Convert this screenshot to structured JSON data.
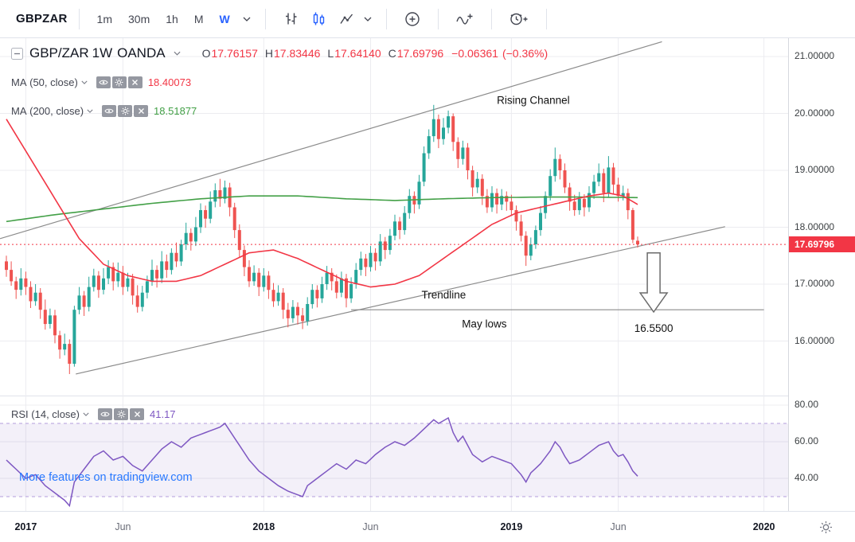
{
  "toolbar": {
    "symbol": "GBPZAR",
    "intervals": [
      "1m",
      "30m",
      "1h",
      "M",
      "W"
    ],
    "active_interval": "W",
    "icons": [
      "bars-chart-style",
      "candles-chart-style",
      "area-chart-style",
      "compare-add-symbol",
      "indicators",
      "alert"
    ]
  },
  "legend": {
    "symbol": "GBP/ZAR",
    "interval": "1W",
    "exchange": "OANDA",
    "ohlc": {
      "o_label": "O",
      "o": "17.76157",
      "h_label": "H",
      "h": "17.83446",
      "l_label": "L",
      "l": "17.64140",
      "c_label": "C",
      "c": "17.69796",
      "change": "−0.06361",
      "change_pct": "(−0.36%)"
    },
    "ma50": {
      "label": "MA",
      "params": "(50, close)",
      "value": "18.40073"
    },
    "ma200": {
      "label": "MA",
      "params": "(200, close)",
      "value": "18.51877"
    }
  },
  "rsi_legend": {
    "label": "RSI",
    "params": "(14, close)",
    "value": "41.17"
  },
  "watermark": "More features on tradingview.com",
  "colors": {
    "accent_blue": "#2962ff",
    "watermark_blue": "#2979ff"
  },
  "price_axis": {
    "ticks": [
      {
        "p": 21,
        "label": "21.00000"
      },
      {
        "p": 20,
        "label": "20.00000"
      },
      {
        "p": 19,
        "label": "19.00000"
      },
      {
        "p": 18,
        "label": "18.00000"
      },
      {
        "p": 17,
        "label": "17.00000"
      },
      {
        "p": 16,
        "label": "16.00000"
      }
    ],
    "last": {
      "price": 17.69796,
      "label": "17.69796",
      "bg": "#f23645"
    }
  },
  "rsi_axis": {
    "ticks": [
      {
        "v": 80,
        "label": "80.00"
      },
      {
        "v": 60,
        "label": "60.00"
      },
      {
        "v": 40,
        "label": "40.00"
      }
    ]
  },
  "time_axis": {
    "ticks": [
      {
        "w": 4,
        "label": "2017",
        "major": true
      },
      {
        "w": 24,
        "label": "Jun",
        "major": false
      },
      {
        "w": 53,
        "label": "2018",
        "major": true
      },
      {
        "w": 75,
        "label": "Jun",
        "major": false
      },
      {
        "w": 104,
        "label": "2019",
        "major": true
      },
      {
        "w": 126,
        "label": "Jun",
        "major": false
      },
      {
        "w": 156,
        "label": "2020",
        "major": true
      }
    ]
  },
  "chart_data": {
    "type": "candlestick",
    "symbol": "GBP/ZAR",
    "interval": "1W",
    "exchange": "OANDA",
    "price_range": [
      15.4,
      21.3
    ],
    "up_color": "#26a69a",
    "down_color": "#ef5350",
    "last_price": 17.69796,
    "candles": [
      [
        17.4,
        17.5,
        17.13,
        17.25
      ],
      [
        17.25,
        17.4,
        16.97,
        17.05
      ],
      [
        17.05,
        17.13,
        16.74,
        16.9
      ],
      [
        16.9,
        17.28,
        16.8,
        17.1
      ],
      [
        17.1,
        17.22,
        16.81,
        16.95
      ],
      [
        16.95,
        17.05,
        16.58,
        16.7
      ],
      [
        16.7,
        17.0,
        16.62,
        16.85
      ],
      [
        16.85,
        16.93,
        16.39,
        16.55
      ],
      [
        16.55,
        16.73,
        16.2,
        16.3
      ],
      [
        16.3,
        16.57,
        16.22,
        16.45
      ],
      [
        16.45,
        16.55,
        15.96,
        16.1
      ],
      [
        16.1,
        16.18,
        15.69,
        15.85
      ],
      [
        15.85,
        16.13,
        15.75,
        15.95
      ],
      [
        15.95,
        16.03,
        15.42,
        15.6
      ],
      [
        15.6,
        16.62,
        15.55,
        16.55
      ],
      [
        16.55,
        16.95,
        16.47,
        16.8
      ],
      [
        16.8,
        16.88,
        16.44,
        16.6
      ],
      [
        16.6,
        17.13,
        16.52,
        16.95
      ],
      [
        16.95,
        17.27,
        16.87,
        17.15
      ],
      [
        17.15,
        17.23,
        16.76,
        16.9
      ],
      [
        16.9,
        17.28,
        16.82,
        17.1
      ],
      [
        17.1,
        17.42,
        17.0,
        17.3
      ],
      [
        17.3,
        17.38,
        16.89,
        17.05
      ],
      [
        17.05,
        17.38,
        16.95,
        17.2
      ],
      [
        17.2,
        17.32,
        16.81,
        16.95
      ],
      [
        16.95,
        17.2,
        16.87,
        17.1
      ],
      [
        17.1,
        17.18,
        16.64,
        16.8
      ],
      [
        16.8,
        16.98,
        16.5,
        16.6
      ],
      [
        16.6,
        16.97,
        16.52,
        16.85
      ],
      [
        16.85,
        17.15,
        16.75,
        17.05
      ],
      [
        17.05,
        17.43,
        16.97,
        17.25
      ],
      [
        17.25,
        17.33,
        16.94,
        17.1
      ],
      [
        17.1,
        17.58,
        17.02,
        17.4
      ],
      [
        17.4,
        17.52,
        17.11,
        17.25
      ],
      [
        17.25,
        17.63,
        17.17,
        17.55
      ],
      [
        17.55,
        17.73,
        17.3,
        17.4
      ],
      [
        17.4,
        17.78,
        17.32,
        17.7
      ],
      [
        17.7,
        18.08,
        17.6,
        17.9
      ],
      [
        17.9,
        17.98,
        17.59,
        17.75
      ],
      [
        17.75,
        18.18,
        17.67,
        18.0
      ],
      [
        18.0,
        18.42,
        17.9,
        18.3
      ],
      [
        18.3,
        18.38,
        17.99,
        18.15
      ],
      [
        18.15,
        18.63,
        18.07,
        18.45
      ],
      [
        18.45,
        18.77,
        18.35,
        18.65
      ],
      [
        18.65,
        18.85,
        18.36,
        18.5
      ],
      [
        18.5,
        18.82,
        18.42,
        18.7
      ],
      [
        18.7,
        18.78,
        18.19,
        18.35
      ],
      [
        18.35,
        18.43,
        17.81,
        17.95
      ],
      [
        17.95,
        18.05,
        17.48,
        17.6
      ],
      [
        17.6,
        17.68,
        17.14,
        17.3
      ],
      [
        17.3,
        17.42,
        16.95,
        17.05
      ],
      [
        17.05,
        17.33,
        16.97,
        17.2
      ],
      [
        17.2,
        17.28,
        16.79,
        16.95
      ],
      [
        16.95,
        17.28,
        16.87,
        17.15
      ],
      [
        17.15,
        17.23,
        16.74,
        16.9
      ],
      [
        16.9,
        17.02,
        16.6,
        16.7
      ],
      [
        16.7,
        16.98,
        16.62,
        16.85
      ],
      [
        16.85,
        16.93,
        16.39,
        16.55
      ],
      [
        16.55,
        16.67,
        16.24,
        16.4
      ],
      [
        16.4,
        16.72,
        16.32,
        16.6
      ],
      [
        16.6,
        16.68,
        16.29,
        16.45
      ],
      [
        16.45,
        16.58,
        16.21,
        16.35
      ],
      [
        16.35,
        16.77,
        16.27,
        16.65
      ],
      [
        16.65,
        17.0,
        16.57,
        16.9
      ],
      [
        16.9,
        16.98,
        16.59,
        16.75
      ],
      [
        16.75,
        17.13,
        16.67,
        17.0
      ],
      [
        17.0,
        17.32,
        16.9,
        17.2
      ],
      [
        17.2,
        17.28,
        16.89,
        17.05
      ],
      [
        17.05,
        17.17,
        16.75,
        16.85
      ],
      [
        16.85,
        17.22,
        16.77,
        17.1
      ],
      [
        17.1,
        17.18,
        16.59,
        16.75
      ],
      [
        16.75,
        17.12,
        16.67,
        17.0
      ],
      [
        17.0,
        17.37,
        16.92,
        17.25
      ],
      [
        17.25,
        17.57,
        17.15,
        17.45
      ],
      [
        17.45,
        17.53,
        17.14,
        17.3
      ],
      [
        17.3,
        17.67,
        17.22,
        17.55
      ],
      [
        17.55,
        17.63,
        17.24,
        17.4
      ],
      [
        17.4,
        17.88,
        17.32,
        17.75
      ],
      [
        17.75,
        17.83,
        17.44,
        17.6
      ],
      [
        17.6,
        17.97,
        17.52,
        17.85
      ],
      [
        17.85,
        18.22,
        17.77,
        18.1
      ],
      [
        18.1,
        18.18,
        17.79,
        17.95
      ],
      [
        17.95,
        18.37,
        17.87,
        18.25
      ],
      [
        18.25,
        18.67,
        18.15,
        18.55
      ],
      [
        18.55,
        18.63,
        18.24,
        18.4
      ],
      [
        18.4,
        18.92,
        18.32,
        18.8
      ],
      [
        18.8,
        19.42,
        18.72,
        19.3
      ],
      [
        19.3,
        19.72,
        19.2,
        19.6
      ],
      [
        19.6,
        20.15,
        19.5,
        19.9
      ],
      [
        19.9,
        19.98,
        19.39,
        19.55
      ],
      [
        19.55,
        19.92,
        19.45,
        19.75
      ],
      [
        19.75,
        20.05,
        19.65,
        19.95
      ],
      [
        19.95,
        20.0,
        19.34,
        19.5
      ],
      [
        19.5,
        19.58,
        19.04,
        19.2
      ],
      [
        19.2,
        19.52,
        19.1,
        19.4
      ],
      [
        19.4,
        19.48,
        18.84,
        19.0
      ],
      [
        19.0,
        19.08,
        18.54,
        18.7
      ],
      [
        18.7,
        18.97,
        18.6,
        18.85
      ],
      [
        18.85,
        18.93,
        18.39,
        18.55
      ],
      [
        18.55,
        18.67,
        18.25,
        18.35
      ],
      [
        18.35,
        18.72,
        18.27,
        18.6
      ],
      [
        18.6,
        18.68,
        18.24,
        18.4
      ],
      [
        18.4,
        18.67,
        18.3,
        18.55
      ],
      [
        18.55,
        18.63,
        18.29,
        18.45
      ],
      [
        18.45,
        18.57,
        18.2,
        18.3
      ],
      [
        18.3,
        18.38,
        17.94,
        18.1
      ],
      [
        18.1,
        18.22,
        17.75,
        17.85
      ],
      [
        17.85,
        17.93,
        17.32,
        17.5
      ],
      [
        17.5,
        17.82,
        17.42,
        17.7
      ],
      [
        17.7,
        18.03,
        17.62,
        17.95
      ],
      [
        17.95,
        18.37,
        17.85,
        18.25
      ],
      [
        18.25,
        18.63,
        18.15,
        18.55
      ],
      [
        18.55,
        19.02,
        18.47,
        18.9
      ],
      [
        18.9,
        19.4,
        18.8,
        19.2
      ],
      [
        19.2,
        19.28,
        18.84,
        19.0
      ],
      [
        19.0,
        19.12,
        18.6,
        18.7
      ],
      [
        18.7,
        18.78,
        18.29,
        18.45
      ],
      [
        18.45,
        18.57,
        18.2,
        18.3
      ],
      [
        18.3,
        18.62,
        18.22,
        18.5
      ],
      [
        18.5,
        18.58,
        18.19,
        18.35
      ],
      [
        18.35,
        18.72,
        18.27,
        18.6
      ],
      [
        18.6,
        18.92,
        18.5,
        18.8
      ],
      [
        18.8,
        19.12,
        18.72,
        18.95
      ],
      [
        18.95,
        19.03,
        18.44,
        18.6
      ],
      [
        18.6,
        19.25,
        18.52,
        19.05
      ],
      [
        19.05,
        19.13,
        18.59,
        18.75
      ],
      [
        18.75,
        18.87,
        18.45,
        18.55
      ],
      [
        18.55,
        18.73,
        18.47,
        18.6
      ],
      [
        18.6,
        18.68,
        18.14,
        18.3
      ],
      [
        18.3,
        18.34,
        17.72,
        17.78
      ],
      [
        17.76157,
        17.83446,
        17.6414,
        17.69796
      ]
    ],
    "ma50": {
      "color": "#f23645",
      "points": [
        [
          0,
          19.9
        ],
        [
          5,
          19.2
        ],
        [
          10,
          18.5
        ],
        [
          15,
          17.8
        ],
        [
          20,
          17.35
        ],
        [
          25,
          17.15
        ],
        [
          30,
          17.05
        ],
        [
          35,
          17.05
        ],
        [
          40,
          17.15
        ],
        [
          45,
          17.35
        ],
        [
          50,
          17.55
        ],
        [
          55,
          17.6
        ],
        [
          60,
          17.45
        ],
        [
          65,
          17.25
        ],
        [
          70,
          17.05
        ],
        [
          75,
          16.95
        ],
        [
          80,
          17.0
        ],
        [
          85,
          17.15
        ],
        [
          90,
          17.45
        ],
        [
          95,
          17.75
        ],
        [
          100,
          18.05
        ],
        [
          105,
          18.25
        ],
        [
          110,
          18.35
        ],
        [
          115,
          18.45
        ],
        [
          120,
          18.55
        ],
        [
          124,
          18.6
        ],
        [
          127,
          18.55
        ],
        [
          130,
          18.4
        ]
      ]
    },
    "ma200": {
      "color": "#43a047",
      "points": [
        [
          0,
          18.1
        ],
        [
          10,
          18.22
        ],
        [
          20,
          18.32
        ],
        [
          30,
          18.42
        ],
        [
          40,
          18.5
        ],
        [
          50,
          18.55
        ],
        [
          60,
          18.55
        ],
        [
          70,
          18.5
        ],
        [
          80,
          18.47
        ],
        [
          90,
          18.5
        ],
        [
          100,
          18.52
        ],
        [
          110,
          18.53
        ],
        [
          120,
          18.53
        ],
        [
          130,
          18.52
        ]
      ]
    },
    "rsi": {
      "color": "#7e57c2",
      "band": [
        30,
        70
      ],
      "current": 41.17,
      "points": [
        [
          0,
          50
        ],
        [
          2,
          45
        ],
        [
          4,
          40
        ],
        [
          6,
          42
        ],
        [
          8,
          36
        ],
        [
          10,
          32
        ],
        [
          12,
          28
        ],
        [
          13,
          25
        ],
        [
          14,
          38
        ],
        [
          16,
          45
        ],
        [
          18,
          52
        ],
        [
          20,
          55
        ],
        [
          22,
          50
        ],
        [
          24,
          52
        ],
        [
          26,
          47
        ],
        [
          28,
          44
        ],
        [
          30,
          50
        ],
        [
          32,
          56
        ],
        [
          34,
          60
        ],
        [
          36,
          57
        ],
        [
          38,
          62
        ],
        [
          40,
          64
        ],
        [
          42,
          66
        ],
        [
          44,
          68
        ],
        [
          45,
          70
        ],
        [
          46,
          66
        ],
        [
          48,
          58
        ],
        [
          50,
          50
        ],
        [
          52,
          44
        ],
        [
          54,
          40
        ],
        [
          56,
          36
        ],
        [
          58,
          33
        ],
        [
          61,
          30
        ],
        [
          62,
          36
        ],
        [
          64,
          40
        ],
        [
          66,
          44
        ],
        [
          68,
          48
        ],
        [
          70,
          45
        ],
        [
          72,
          50
        ],
        [
          74,
          48
        ],
        [
          76,
          53
        ],
        [
          78,
          57
        ],
        [
          80,
          60
        ],
        [
          82,
          58
        ],
        [
          84,
          62
        ],
        [
          86,
          67
        ],
        [
          88,
          72
        ],
        [
          89,
          70
        ],
        [
          91,
          73
        ],
        [
          92,
          65
        ],
        [
          93,
          60
        ],
        [
          94,
          63
        ],
        [
          95,
          58
        ],
        [
          96,
          53
        ],
        [
          98,
          49
        ],
        [
          100,
          52
        ],
        [
          102,
          50
        ],
        [
          104,
          48
        ],
        [
          106,
          42
        ],
        [
          107,
          38
        ],
        [
          108,
          43
        ],
        [
          110,
          48
        ],
        [
          112,
          55
        ],
        [
          113,
          60
        ],
        [
          114,
          57
        ],
        [
          115,
          52
        ],
        [
          116,
          48
        ],
        [
          118,
          50
        ],
        [
          120,
          54
        ],
        [
          122,
          58
        ],
        [
          124,
          60
        ],
        [
          125,
          55
        ],
        [
          126,
          52
        ],
        [
          127,
          53
        ],
        [
          128,
          49
        ],
        [
          129,
          44
        ],
        [
          130,
          41.17
        ]
      ]
    },
    "annotations": {
      "upper_channel": {
        "from": [
          -1.3,
          17.8
        ],
        "to": [
          135,
          21.26
        ]
      },
      "trendline": {
        "from": [
          14.3,
          15.42
        ],
        "to": [
          148,
          18.01
        ]
      },
      "may_lows_line": {
        "from": [
          71,
          16.55
        ],
        "to": [
          156,
          16.55
        ]
      },
      "labels": [
        {
          "text": "Rising Channel",
          "w": 101,
          "p": 20.17
        },
        {
          "text": "Trendline",
          "w": 85.5,
          "p": 16.75
        },
        {
          "text": "May lows",
          "w": 93.8,
          "p": 16.24
        },
        {
          "text": "16.5500",
          "w": 129.3,
          "p": 16.16
        }
      ],
      "arrow": {
        "w": 133.3,
        "p_top": 17.55,
        "p_tip": 16.51
      }
    }
  }
}
